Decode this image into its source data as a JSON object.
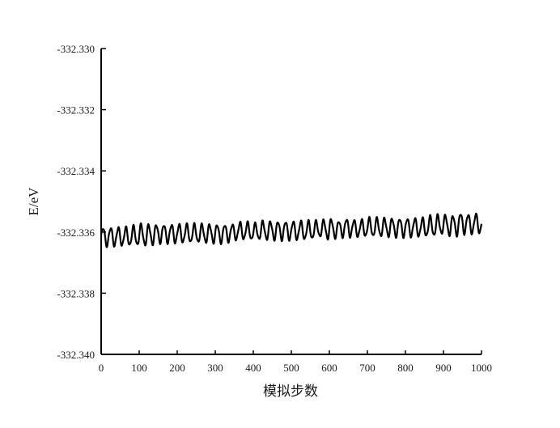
{
  "chart_data": {
    "type": "line",
    "title": "",
    "xlabel": "模拟步数",
    "ylabel": "E/eV",
    "xlim": [
      0,
      1000
    ],
    "ylim": [
      -332.34,
      -332.33
    ],
    "xticks": [
      "0",
      "100",
      "200",
      "300",
      "400",
      "500",
      "600",
      "700",
      "800",
      "900",
      "1000"
    ],
    "yticks": [
      "-332.330",
      "-332.332",
      "-332.334",
      "-332.336",
      "-332.338",
      "-332.340"
    ],
    "grid": false,
    "legend": "none",
    "line_color": "#000000",
    "series": [
      {
        "oscillation_period": 20,
        "x": [
          0,
          25,
          50,
          75,
          100,
          125,
          150,
          175,
          200,
          225,
          250,
          275,
          300,
          325,
          350,
          375,
          400,
          425,
          450,
          475,
          500,
          525,
          550,
          575,
          600,
          625,
          650,
          675,
          700,
          725,
          750,
          775,
          800,
          825,
          850,
          875,
          900,
          925,
          950,
          975,
          1000
        ],
        "upper": [
          -332.3358,
          -332.3358,
          -332.3358,
          -332.3358,
          -332.3357,
          -332.3357,
          -332.3357,
          -332.3357,
          -332.3357,
          -332.3357,
          -332.3357,
          -332.3357,
          -332.3357,
          -332.3357,
          -332.3357,
          -332.3356,
          -332.3357,
          -332.3356,
          -332.3356,
          -332.3356,
          -332.3356,
          -332.3356,
          -332.3356,
          -332.3356,
          -332.3355,
          -332.3356,
          -332.3355,
          -332.3356,
          -332.3355,
          -332.3355,
          -332.3355,
          -332.3355,
          -332.3355,
          -332.3355,
          -332.3355,
          -332.3354,
          -332.3354,
          -332.3354,
          -332.3353,
          -332.3354,
          -332.3353
        ],
        "lower": [
          -332.3365,
          -332.3365,
          -332.3365,
          -332.3365,
          -332.3365,
          -332.3365,
          -332.3364,
          -332.3364,
          -332.3364,
          -332.3364,
          -332.3364,
          -332.3364,
          -332.3364,
          -332.3364,
          -332.3363,
          -332.3363,
          -332.3363,
          -332.3363,
          -332.3363,
          -332.3363,
          -332.3363,
          -332.3363,
          -332.3363,
          -332.3362,
          -332.3363,
          -332.3362,
          -332.3362,
          -332.3362,
          -332.3362,
          -332.3362,
          -332.3362,
          -332.3362,
          -332.3362,
          -332.3362,
          -332.3362,
          -332.3362,
          -332.3361,
          -332.3362,
          -332.3361,
          -332.3361,
          -332.3361
        ]
      }
    ]
  }
}
